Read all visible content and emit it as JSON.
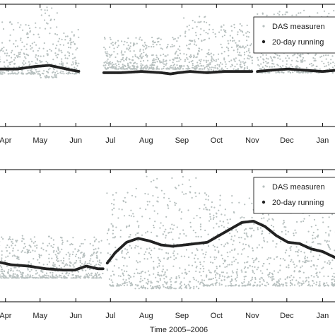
{
  "chart_data": [
    {
      "type": "scatter",
      "xlabel": "",
      "x_ticks": [
        {
          "label": "Apr",
          "day": 0
        },
        {
          "label": "May",
          "day": 30
        },
        {
          "label": "Jun",
          "day": 61
        },
        {
          "label": "Jul",
          "day": 91
        },
        {
          "label": "Aug",
          "day": 122
        },
        {
          "label": "Sep",
          "day": 153
        },
        {
          "label": "Oct",
          "day": 183
        },
        {
          "label": "Nov",
          "day": 214
        },
        {
          "label": "Dec",
          "day": 244
        },
        {
          "label": "Jan",
          "day": 275
        }
      ],
      "xlim": [
        -6,
        287
      ],
      "legend": {
        "position": "top-right",
        "entries": [
          "DAS measuren",
          "20-day running"
        ]
      },
      "gaps": [
        [
          64,
          85
        ],
        [
          214,
          218
        ]
      ],
      "series": [
        {
          "kind": "scatter",
          "color": "#b7c0bf",
          "bands": [
            {
              "start": -6,
              "end": 30,
              "lo": 0.43,
              "hi": 0.86
            },
            {
              "start": 30,
              "end": 45,
              "lo": 0.4,
              "hi": 0.98
            },
            {
              "start": 45,
              "end": 64,
              "lo": 0.43,
              "hi": 0.8
            },
            {
              "start": 85,
              "end": 150,
              "lo": 0.47,
              "hi": 0.73
            },
            {
              "start": 150,
              "end": 175,
              "lo": 0.47,
              "hi": 0.9
            },
            {
              "start": 175,
              "end": 214,
              "lo": 0.45,
              "hi": 0.84
            },
            {
              "start": 218,
              "end": 287,
              "lo": 0.44,
              "hi": 0.95
            }
          ]
        },
        {
          "kind": "line",
          "color": "#222222",
          "x": [
            -6,
            10,
            25,
            38,
            48,
            58,
            64,
            85,
            100,
            118,
            135,
            143,
            150,
            160,
            175,
            190,
            200,
            214,
            218,
            230,
            245,
            260,
            275,
            287
          ],
          "y": [
            0.47,
            0.47,
            0.49,
            0.5,
            0.48,
            0.46,
            0.45,
            0.44,
            0.44,
            0.45,
            0.44,
            0.43,
            0.44,
            0.45,
            0.44,
            0.45,
            0.45,
            0.45,
            0.45,
            0.46,
            0.47,
            0.46,
            0.45,
            0.46
          ]
        }
      ]
    },
    {
      "type": "scatter",
      "xlabel": "Time 2005–2006",
      "x_ticks": [
        {
          "label": "Apr",
          "day": 0
        },
        {
          "label": "May",
          "day": 30
        },
        {
          "label": "Jun",
          "day": 61
        },
        {
          "label": "Jul",
          "day": 91
        },
        {
          "label": "Aug",
          "day": 122
        },
        {
          "label": "Sep",
          "day": 153
        },
        {
          "label": "Oct",
          "day": 183
        },
        {
          "label": "Nov",
          "day": 214
        },
        {
          "label": "Dec",
          "day": 244
        },
        {
          "label": "Jan",
          "day": 275
        }
      ],
      "xlim": [
        -6,
        287
      ],
      "legend": {
        "position": "top-right",
        "entries": [
          "DAS measuren",
          "20-day running"
        ]
      },
      "gaps": [
        [
          85,
          88
        ]
      ],
      "series": [
        {
          "kind": "scatter",
          "color": "#b7c0bf",
          "bands": [
            {
              "start": -6,
              "end": 85,
              "lo": 0.18,
              "hi": 0.5
            },
            {
              "start": 88,
              "end": 110,
              "lo": 0.12,
              "hi": 0.85
            },
            {
              "start": 110,
              "end": 170,
              "lo": 0.1,
              "hi": 0.95
            },
            {
              "start": 170,
              "end": 287,
              "lo": 0.12,
              "hi": 0.83
            }
          ]
        },
        {
          "kind": "line",
          "color": "#222222",
          "x": [
            -6,
            5,
            20,
            35,
            50,
            60,
            70,
            80,
            85,
            88,
            95,
            105,
            115,
            125,
            135,
            145,
            155,
            165,
            175,
            185,
            195,
            205,
            215,
            225,
            235,
            245,
            255,
            265,
            275,
            287
          ],
          "y": [
            0.3,
            0.28,
            0.27,
            0.25,
            0.24,
            0.24,
            0.27,
            0.25,
            0.25,
            0.29,
            0.37,
            0.45,
            0.48,
            0.46,
            0.43,
            0.42,
            0.43,
            0.44,
            0.45,
            0.5,
            0.55,
            0.6,
            0.61,
            0.57,
            0.5,
            0.45,
            0.44,
            0.4,
            0.38,
            0.33
          ]
        }
      ]
    }
  ]
}
